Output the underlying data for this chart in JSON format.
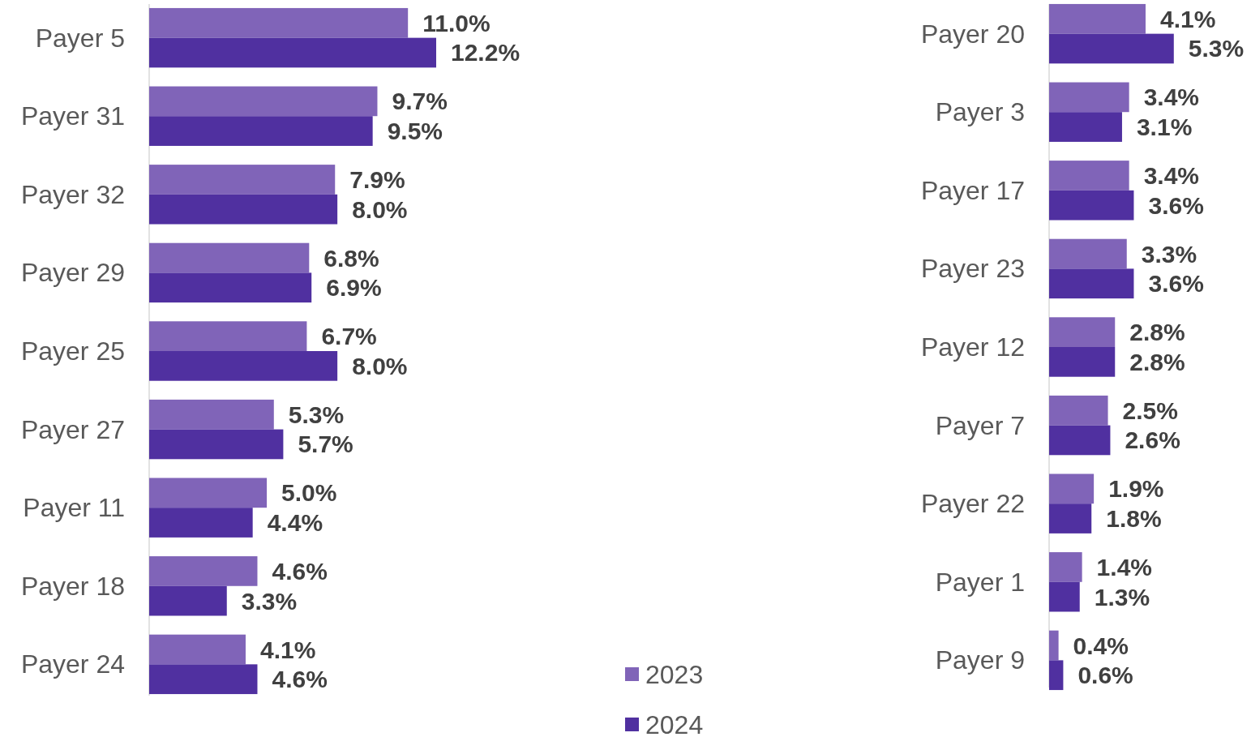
{
  "chart_data": [
    {
      "type": "bar",
      "orientation": "horizontal",
      "categories": [
        "Payer 5",
        "Payer 31",
        "Payer 32",
        "Payer 29",
        "Payer 25",
        "Payer 27",
        "Payer 11",
        "Payer 18",
        "Payer 24"
      ],
      "series": [
        {
          "name": "2023",
          "color": "#8064b8",
          "values": [
            11.0,
            9.7,
            7.9,
            6.8,
            6.7,
            5.3,
            5.0,
            4.6,
            4.1
          ],
          "value_labels": [
            "11.0%",
            "9.7%",
            "7.9%",
            "6.8%",
            "6.7%",
            "5.3%",
            "5.0%",
            "4.6%",
            "4.1%"
          ]
        },
        {
          "name": "2024",
          "color": "#5030a0",
          "values": [
            12.2,
            9.5,
            8.0,
            6.9,
            8.0,
            5.7,
            4.4,
            3.3,
            4.6
          ],
          "value_labels": [
            "12.2%",
            "9.5%",
            "8.0%",
            "6.9%",
            "8.0%",
            "5.7%",
            "4.4%",
            "3.3%",
            "4.6%"
          ]
        }
      ],
      "legend": "bottom"
    },
    {
      "type": "bar",
      "orientation": "horizontal",
      "categories": [
        "Payer 20",
        "Payer 3",
        "Payer 17",
        "Payer 23",
        "Payer 12",
        "Payer 7",
        "Payer 22",
        "Payer 1",
        "Payer 9"
      ],
      "series": [
        {
          "color": "#8064b8",
          "values": [
            4.1,
            3.4,
            3.4,
            3.3,
            2.8,
            2.5,
            1.9,
            1.4,
            0.4
          ],
          "value_labels": [
            "4.1%",
            "3.4%",
            "3.4%",
            "3.3%",
            "2.8%",
            "2.5%",
            "1.9%",
            "1.4%",
            "0.4%"
          ]
        },
        {
          "color": "#5030a0",
          "values": [
            5.3,
            3.1,
            3.6,
            3.6,
            2.8,
            2.6,
            1.8,
            1.3,
            0.6
          ],
          "value_labels": [
            "5.3%",
            "3.1%",
            "3.6%",
            "3.6%",
            "2.8%",
            "2.6%",
            "1.8%",
            "1.3%",
            "0.6%"
          ]
        }
      ],
      "legend": false
    }
  ]
}
